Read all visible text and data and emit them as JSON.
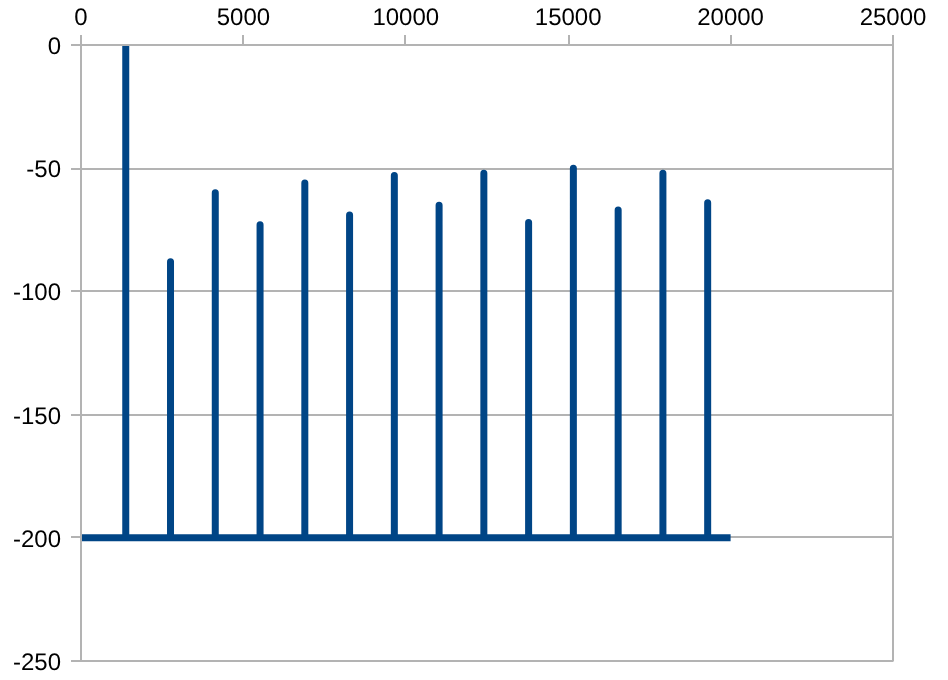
{
  "chart_data": {
    "type": "line",
    "x": [
      0,
      1378,
      1378,
      1378,
      2756,
      2756,
      2756,
      4134,
      4134,
      4134,
      5513,
      5513,
      5513,
      6891,
      6891,
      6891,
      8269,
      8269,
      8269,
      9647,
      9647,
      9647,
      11025,
      11025,
      11025,
      12403,
      12403,
      12403,
      13781,
      13781,
      13781,
      15159,
      15159,
      15159,
      16538,
      16538,
      16538,
      17916,
      17916,
      17916,
      19294,
      19294,
      19294,
      20000
    ],
    "series": [
      {
        "color": "#004586",
        "values": [
          -200,
          -200,
          0,
          -200,
          -200,
          -88,
          -200,
          -200,
          -60,
          -200,
          -200,
          -73,
          -200,
          -200,
          -56,
          -200,
          -200,
          -69,
          -200,
          -200,
          -53,
          -200,
          -200,
          -65,
          -200,
          -200,
          -52,
          -200,
          -200,
          -72,
          -200,
          -200,
          -50,
          -200,
          -200,
          -67,
          -200,
          -200,
          -52,
          -200,
          -200,
          -64,
          -200,
          -200
        ]
      }
    ],
    "xlim": [
      0,
      25000
    ],
    "xticks": [
      0,
      5000,
      10000,
      15000,
      20000,
      25000
    ],
    "ylim": [
      -250,
      0
    ],
    "yticks": [
      -250,
      -200,
      -150,
      -100,
      -50,
      0
    ],
    "grid": "y",
    "marker": "none",
    "line_style": "solid"
  }
}
